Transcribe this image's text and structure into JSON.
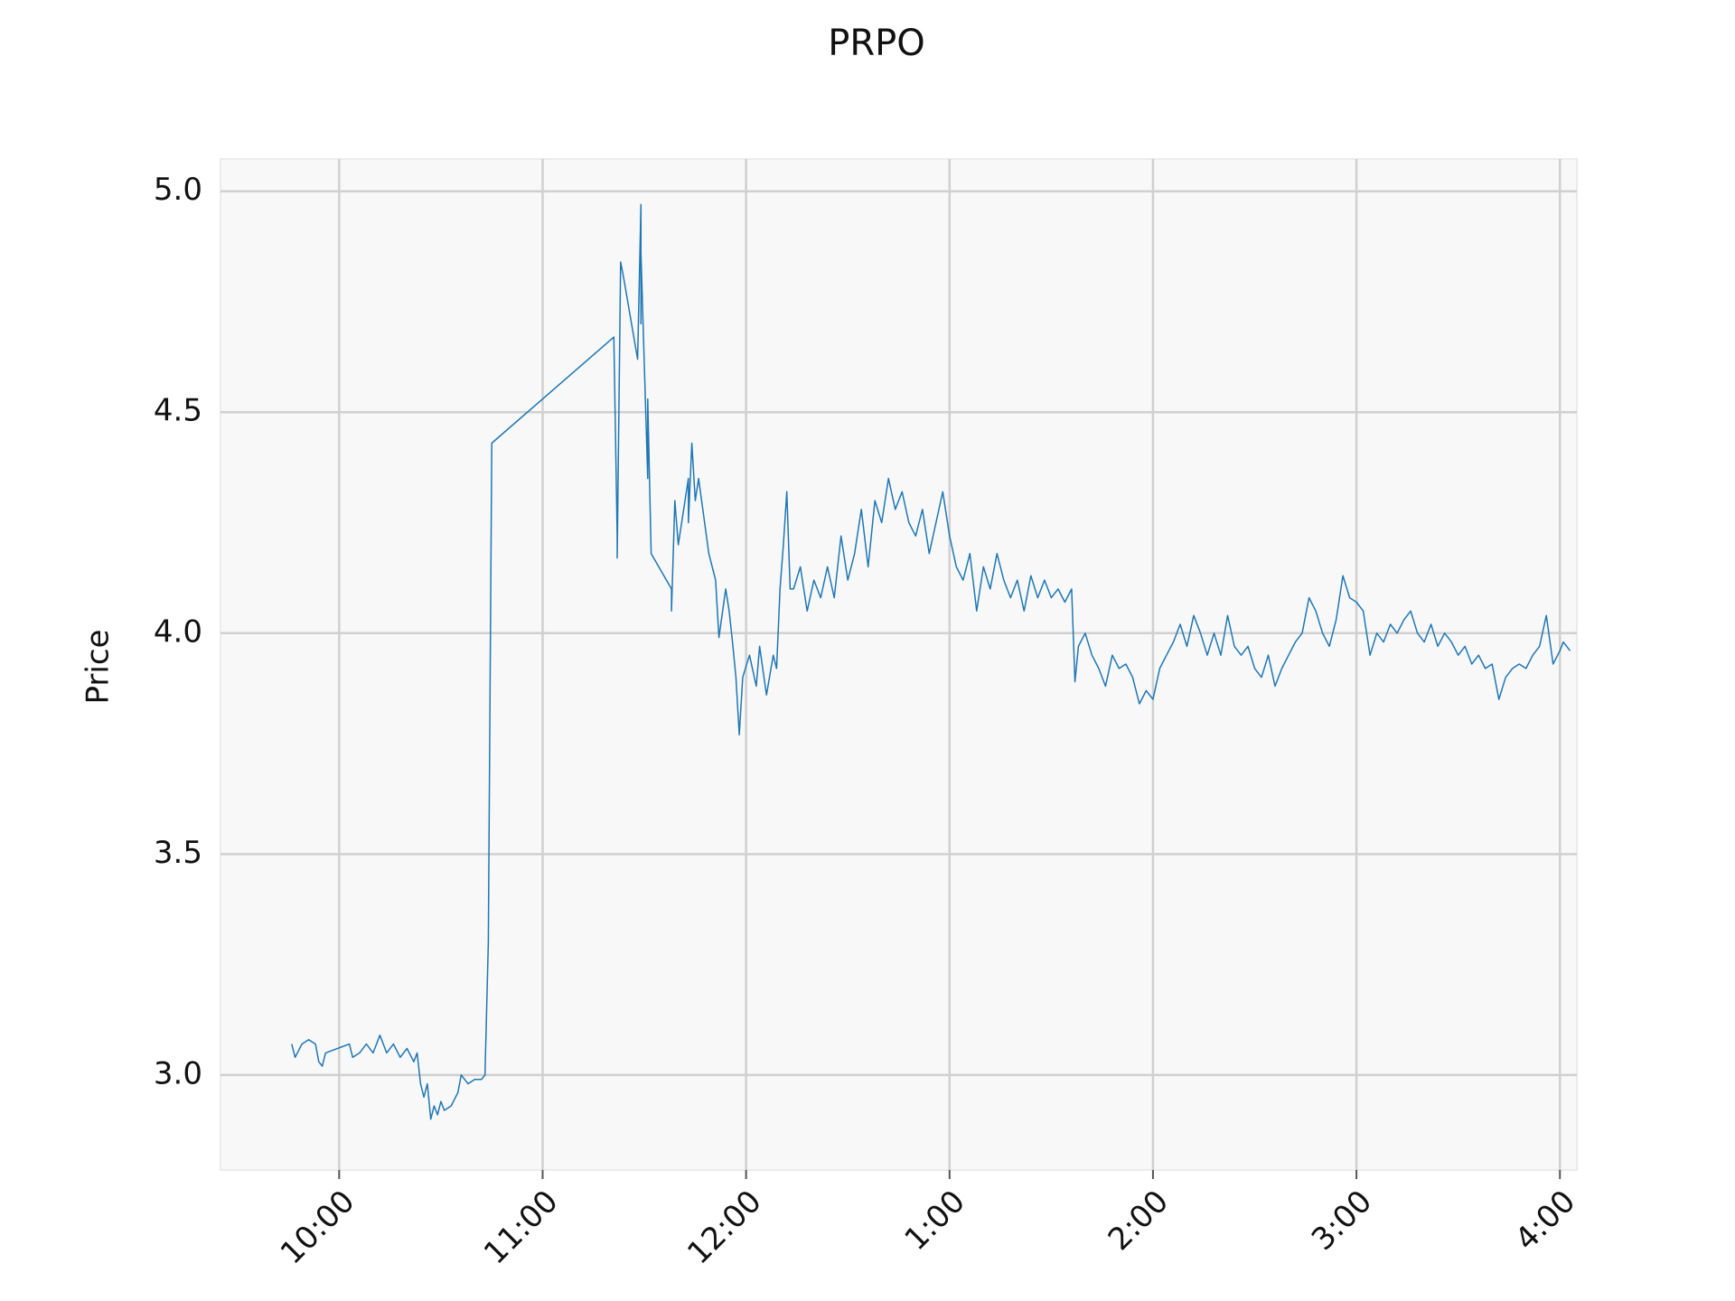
{
  "chart_data": {
    "type": "line",
    "title": "PRPO",
    "ylabel": "Price",
    "x": [
      "9:46",
      "9:47",
      "9:49",
      "9:51",
      "9:53",
      "9:54",
      "9:55",
      "9:56",
      "10:03",
      "10:04",
      "10:06",
      "10:08",
      "10:10",
      "10:12",
      "10:14",
      "10:16",
      "10:18",
      "10:20",
      "10:22",
      "10:23",
      "10:24",
      "10:25",
      "10:26",
      "10:27",
      "10:28",
      "10:29",
      "10:30",
      "10:31",
      "10:33",
      "10:35",
      "10:36",
      "10:38",
      "10:40",
      "10:42",
      "10:43",
      "10:44",
      "10:45",
      "11:21",
      "11:22",
      "11:22",
      "11:23",
      "11:24",
      "11:28",
      "11:29",
      "11:29",
      "11:29",
      "11:31",
      "11:31",
      "11:32",
      "11:38",
      "11:38",
      "11:39",
      "11:40",
      "11:43",
      "11:43",
      "11:44",
      "11:45",
      "11:46",
      "11:49",
      "11:51",
      "11:52",
      "11:54",
      "11:55",
      "11:56",
      "11:57",
      "11:58",
      "11:59",
      "12:01",
      "12:03",
      "12:04",
      "12:06",
      "12:08",
      "12:09",
      "12:10",
      "12:11",
      "12:12",
      "12:13",
      "12:14",
      "12:16",
      "12:18",
      "12:20",
      "12:22",
      "12:24",
      "12:26",
      "12:28",
      "12:30",
      "12:32",
      "12:34",
      "12:36",
      "12:38",
      "12:40",
      "12:42",
      "12:44",
      "12:46",
      "12:48",
      "12:50",
      "12:52",
      "12:54",
      "12:56",
      "12:58",
      "1:00",
      "1:02",
      "1:04",
      "1:06",
      "1:08",
      "1:10",
      "1:12",
      "1:14",
      "1:16",
      "1:18",
      "1:20",
      "1:22",
      "1:24",
      "1:26",
      "1:28",
      "1:30",
      "1:32",
      "1:34",
      "1:36",
      "1:37",
      "1:38",
      "1:40",
      "1:42",
      "1:44",
      "1:46",
      "1:48",
      "1:50",
      "1:52",
      "1:54",
      "1:56",
      "1:58",
      "2:00",
      "2:02",
      "2:04",
      "2:06",
      "2:08",
      "2:10",
      "2:12",
      "2:14",
      "2:16",
      "2:18",
      "2:20",
      "2:22",
      "2:24",
      "2:26",
      "2:28",
      "2:30",
      "2:32",
      "2:34",
      "2:36",
      "2:38",
      "2:40",
      "2:42",
      "2:44",
      "2:46",
      "2:48",
      "2:50",
      "2:52",
      "2:54",
      "2:56",
      "2:58",
      "3:00",
      "3:02",
      "3:04",
      "3:06",
      "3:08",
      "3:10",
      "3:12",
      "3:14",
      "3:16",
      "3:18",
      "3:20",
      "3:22",
      "3:24",
      "3:26",
      "3:28",
      "3:30",
      "3:32",
      "3:34",
      "3:36",
      "3:38",
      "3:40",
      "3:42",
      "3:44",
      "3:46",
      "3:48",
      "3:50",
      "3:52",
      "3:54",
      "3:56",
      "3:58",
      "4:00",
      "4:01",
      "4:03"
    ],
    "values": [
      3.07,
      3.04,
      3.07,
      3.08,
      3.07,
      3.03,
      3.02,
      3.05,
      3.07,
      3.04,
      3.05,
      3.07,
      3.05,
      3.09,
      3.05,
      3.07,
      3.04,
      3.06,
      3.03,
      3.05,
      2.98,
      2.95,
      2.98,
      2.9,
      2.93,
      2.91,
      2.94,
      2.92,
      2.93,
      2.96,
      3.0,
      2.98,
      2.99,
      2.99,
      3.0,
      3.3,
      4.43,
      4.67,
      4.22,
      4.17,
      4.84,
      4.8,
      4.62,
      4.97,
      4.7,
      4.86,
      4.35,
      4.53,
      4.18,
      4.1,
      4.05,
      4.3,
      4.2,
      4.35,
      4.25,
      4.43,
      4.3,
      4.35,
      4.18,
      4.12,
      3.99,
      4.1,
      4.05,
      3.98,
      3.9,
      3.77,
      3.9,
      3.95,
      3.88,
      3.97,
      3.86,
      3.95,
      3.92,
      4.1,
      4.2,
      4.32,
      4.1,
      4.1,
      4.15,
      4.05,
      4.12,
      4.08,
      4.15,
      4.08,
      4.22,
      4.12,
      4.18,
      4.28,
      4.15,
      4.3,
      4.25,
      4.35,
      4.28,
      4.32,
      4.25,
      4.22,
      4.28,
      4.18,
      4.25,
      4.32,
      4.22,
      4.15,
      4.12,
      4.18,
      4.05,
      4.15,
      4.1,
      4.18,
      4.12,
      4.08,
      4.12,
      4.05,
      4.13,
      4.08,
      4.12,
      4.08,
      4.1,
      4.07,
      4.1,
      3.89,
      3.97,
      4.0,
      3.95,
      3.92,
      3.88,
      3.95,
      3.92,
      3.93,
      3.9,
      3.84,
      3.87,
      3.85,
      3.92,
      3.95,
      3.98,
      4.02,
      3.97,
      4.04,
      4.0,
      3.95,
      4.0,
      3.95,
      4.04,
      3.97,
      3.95,
      3.97,
      3.92,
      3.9,
      3.95,
      3.88,
      3.92,
      3.95,
      3.98,
      4.0,
      4.08,
      4.05,
      4.0,
      3.97,
      4.03,
      4.13,
      4.08,
      4.07,
      4.05,
      3.95,
      4.0,
      3.98,
      4.02,
      4.0,
      4.03,
      4.05,
      4.0,
      3.98,
      4.02,
      3.97,
      4.0,
      3.98,
      3.95,
      3.97,
      3.93,
      3.95,
      3.92,
      3.93,
      3.85,
      3.9,
      3.92,
      3.93,
      3.92,
      3.95,
      3.97,
      4.04,
      3.93,
      3.96,
      3.98,
      3.96
    ],
    "color": "#1f77b4",
    "xlim": [
      "9:25",
      "4:05"
    ],
    "xticks": [
      "10:00",
      "11:00",
      "12:00",
      "1:00",
      "2:00",
      "3:00",
      "4:00"
    ],
    "ylim": [
      2.785,
      5.073
    ],
    "yticks": [
      {
        "value": 3,
        "label": "3.0"
      },
      {
        "value": 3.5,
        "label": "3.5"
      },
      {
        "value": 4,
        "label": "4.0"
      },
      {
        "value": 4.5,
        "label": "4.5"
      },
      {
        "value": 5,
        "label": "5.0"
      }
    ],
    "grid": true
  }
}
